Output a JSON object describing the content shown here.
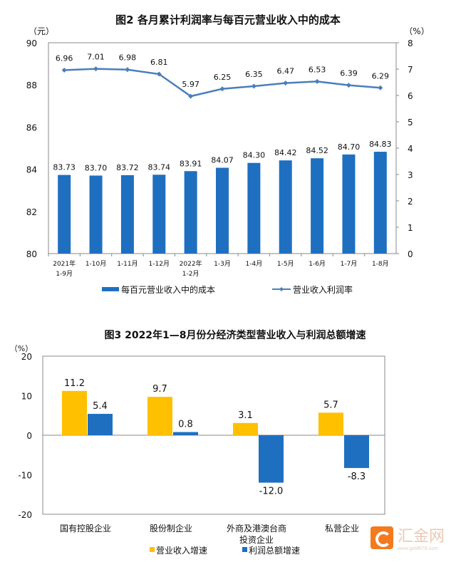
{
  "chart_data": [
    {
      "type": "bar+line",
      "title": "图2 各月累计利润率与每百元营业收入中的成本",
      "left_unit": "（元）",
      "right_unit": "（%）",
      "ylim_left": [
        80,
        90
      ],
      "yticks_left": [
        80,
        82,
        84,
        86,
        88,
        90
      ],
      "ylim_right": [
        0,
        8
      ],
      "yticks_right": [
        0,
        1,
        2,
        3,
        4,
        5,
        6,
        7,
        8
      ],
      "categories": [
        [
          "2021年",
          "1-9月"
        ],
        [
          "1-10月"
        ],
        [
          "1-11月"
        ],
        [
          "1-12月"
        ],
        [
          "2022年",
          "1-2月"
        ],
        [
          "1-3月"
        ],
        [
          "1-4月"
        ],
        [
          "1-5月"
        ],
        [
          "1-6月"
        ],
        [
          "1-7月"
        ],
        [
          "1-8月"
        ]
      ],
      "series": [
        {
          "name": "每百元营业收入中的成本",
          "type": "bar",
          "axis": "left",
          "color": "#1f6fc0",
          "values": [
            83.73,
            83.7,
            83.72,
            83.74,
            83.91,
            84.07,
            84.3,
            84.42,
            84.52,
            84.7,
            84.83
          ]
        },
        {
          "name": "营业收入利润率",
          "type": "line",
          "axis": "right",
          "color": "#4a7ebb",
          "values": [
            6.96,
            7.01,
            6.98,
            6.81,
            5.97,
            6.25,
            6.35,
            6.47,
            6.53,
            6.39,
            6.29
          ]
        }
      ],
      "legend": "bottom"
    },
    {
      "type": "bar",
      "title": "图3 2022年1—8月份分经济类型营业收入与利润总额增速",
      "unit": "（%）",
      "ylim": [
        -20,
        20
      ],
      "yticks": [
        -20,
        -10,
        0,
        10,
        20
      ],
      "categories": [
        [
          "国有控股企业"
        ],
        [
          "股份制企业"
        ],
        [
          "外商及港澳台商",
          "投资企业"
        ],
        [
          "私营企业"
        ]
      ],
      "series": [
        {
          "name": "营业收入增速",
          "color": "#ffc000",
          "values": [
            11.2,
            9.7,
            3.1,
            5.7
          ]
        },
        {
          "name": "利润总额增速",
          "color": "#1f6fc0",
          "values": [
            5.4,
            0.8,
            -12.0,
            -8.3
          ]
        }
      ],
      "legend": "bottom"
    }
  ],
  "watermark": {
    "name": "汇金网",
    "url": "www.gold678.com"
  }
}
